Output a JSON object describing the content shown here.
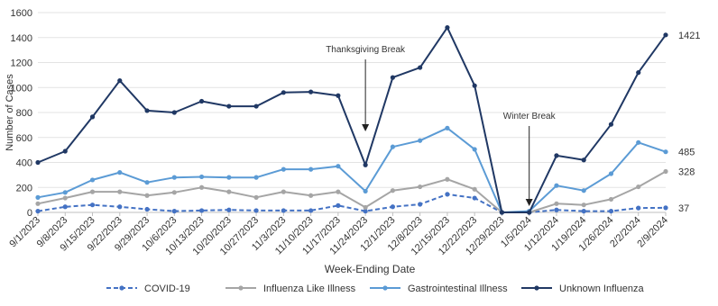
{
  "chart_data": {
    "type": "line",
    "xlabel": "Week-Ending Date",
    "ylabel": "Number of Cases",
    "ylim": [
      0,
      1600
    ],
    "yticks": [
      0,
      200,
      400,
      600,
      800,
      1000,
      1200,
      1400,
      1600
    ],
    "grid": "horizontal",
    "legend_position": "bottom",
    "categories": [
      "9/1/2023",
      "9/8/2023",
      "9/15/2023",
      "9/22/2023",
      "9/29/2023",
      "10/6/2023",
      "10/13/2023",
      "10/20/2023",
      "10/27/2023",
      "11/3/2023",
      "11/10/2023",
      "11/17/2023",
      "11/24/2023",
      "12/1/2023",
      "12/8/2023",
      "12/15/2023",
      "12/22/2023",
      "12/29/2023",
      "1/5/2024",
      "1/12/2024",
      "1/19/2024",
      "1/26/2024",
      "2/2/2024",
      "2/9/2024"
    ],
    "series": [
      {
        "name": "COVID-19",
        "color": "#4472c4",
        "dashed": true,
        "values": [
          10,
          45,
          60,
          45,
          25,
          10,
          15,
          20,
          15,
          15,
          15,
          55,
          10,
          45,
          65,
          145,
          115,
          0,
          0,
          20,
          10,
          10,
          35,
          37
        ]
      },
      {
        "name": "Influenza Like Illness",
        "color": "#a5a5a5",
        "dashed": false,
        "values": [
          70,
          115,
          165,
          165,
          135,
          160,
          200,
          165,
          120,
          165,
          135,
          165,
          40,
          175,
          205,
          265,
          185,
          0,
          0,
          70,
          60,
          105,
          205,
          328
        ]
      },
      {
        "name": "Gastrointestinal Illness",
        "color": "#5b9bd5",
        "dashed": false,
        "values": [
          120,
          160,
          260,
          320,
          240,
          280,
          285,
          280,
          280,
          345,
          345,
          370,
          170,
          525,
          575,
          675,
          505,
          0,
          10,
          215,
          175,
          310,
          560,
          485
        ]
      },
      {
        "name": "Unknown Influenza",
        "color": "#203864",
        "dashed": false,
        "values": [
          400,
          490,
          765,
          1055,
          815,
          800,
          890,
          850,
          850,
          960,
          965,
          935,
          380,
          1080,
          1160,
          1480,
          1015,
          0,
          0,
          455,
          420,
          705,
          1120,
          1421
        ]
      }
    ],
    "end_labels": [
      "37",
      "328",
      "485",
      "1421"
    ],
    "annotations": [
      {
        "text": "Thanksgiving Break",
        "category": "11/24/2023"
      },
      {
        "text": "Winter Break",
        "category": "1/5/2024"
      }
    ]
  }
}
